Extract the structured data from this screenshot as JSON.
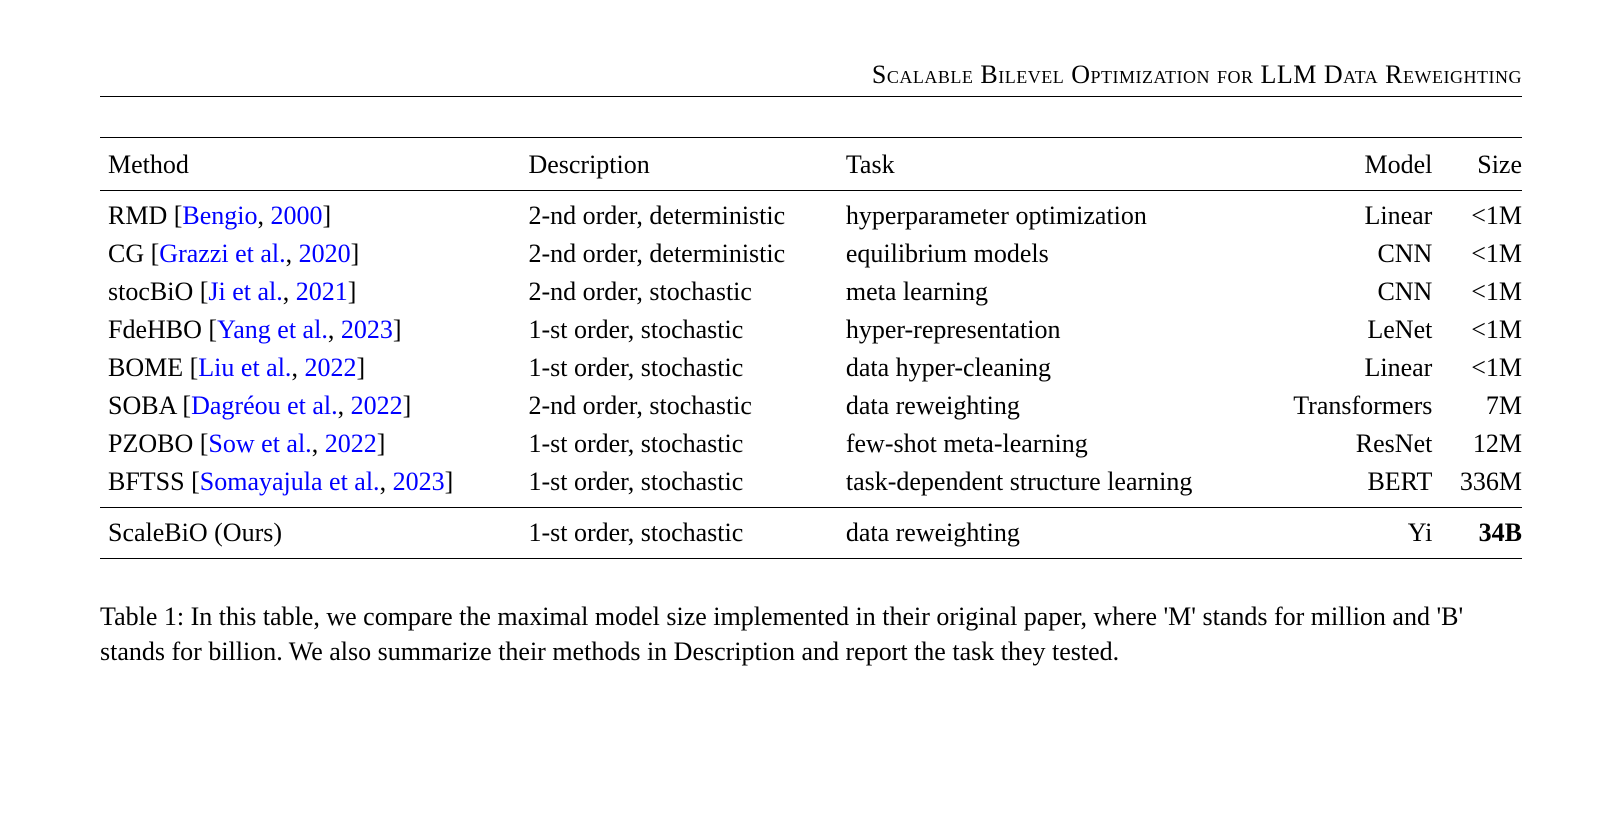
{
  "header": {
    "running_title": "Scalable Bilevel Optimization for LLM Data Reweighting"
  },
  "table": {
    "columns": [
      "Method",
      "Description",
      "Task",
      "Model",
      "Size"
    ],
    "rows": [
      {
        "method_name": "RMD",
        "citation_text": "Bengio",
        "citation_year": "2000",
        "description": "2-nd order, deterministic",
        "task": "hyperparameter optimization",
        "model": "Linear",
        "size": "<1M",
        "size_bold": false
      },
      {
        "method_name": "CG",
        "citation_text": "Grazzi et al.",
        "citation_year": "2020",
        "description": "2-nd order, deterministic",
        "task": "equilibrium models",
        "model": "CNN",
        "size": "<1M",
        "size_bold": false
      },
      {
        "method_name": "stocBiO",
        "citation_text": "Ji et al.",
        "citation_year": "2021",
        "description": "2-nd order, stochastic",
        "task": "meta learning",
        "model": "CNN",
        "size": "<1M",
        "size_bold": false
      },
      {
        "method_name": "FdeHBO",
        "citation_text": "Yang et al.",
        "citation_year": "2023",
        "description": "1-st order, stochastic",
        "task": "hyper-representation",
        "model": "LeNet",
        "size": "<1M",
        "size_bold": false
      },
      {
        "method_name": "BOME",
        "citation_text": "Liu et al.",
        "citation_year": "2022",
        "description": "1-st order, stochastic",
        "task": "data hyper-cleaning",
        "model": "Linear",
        "size": "<1M",
        "size_bold": false
      },
      {
        "method_name": "SOBA",
        "citation_text": "Dagréou et al.",
        "citation_year": "2022",
        "description": "2-nd order, stochastic",
        "task": "data reweighting",
        "model": "Transformers",
        "size": "7M",
        "size_bold": false
      },
      {
        "method_name": "PZOBO",
        "citation_text": "Sow et al.",
        "citation_year": "2022",
        "description": "1-st order, stochastic",
        "task": "few-shot meta-learning",
        "model": "ResNet",
        "size": "12M",
        "size_bold": false
      },
      {
        "method_name": "BFTSS",
        "citation_text": "Somayajula et al.",
        "citation_year": "2023",
        "description": "1-st order, stochastic",
        "task": "task-dependent structure learning",
        "model": "BERT",
        "size": "336M",
        "size_bold": false
      }
    ],
    "ours_row": {
      "method_name": "ScaleBiO (Ours)",
      "description": "1-st order, stochastic",
      "task": "data reweighting",
      "model": "Yi",
      "size": "34B",
      "size_bold": true
    }
  },
  "caption": {
    "label": "Table 1:",
    "text": "In this table, we compare the maximal model size implemented in their original paper, where 'M' stands for million and 'B' stands for billion. We also summarize their methods in Description and report the task they tested."
  },
  "style": {
    "link_color": "#0000ff",
    "text_color": "#000000",
    "background_color": "#ffffff",
    "font_family": "Times New Roman",
    "base_fontsize": 26
  }
}
